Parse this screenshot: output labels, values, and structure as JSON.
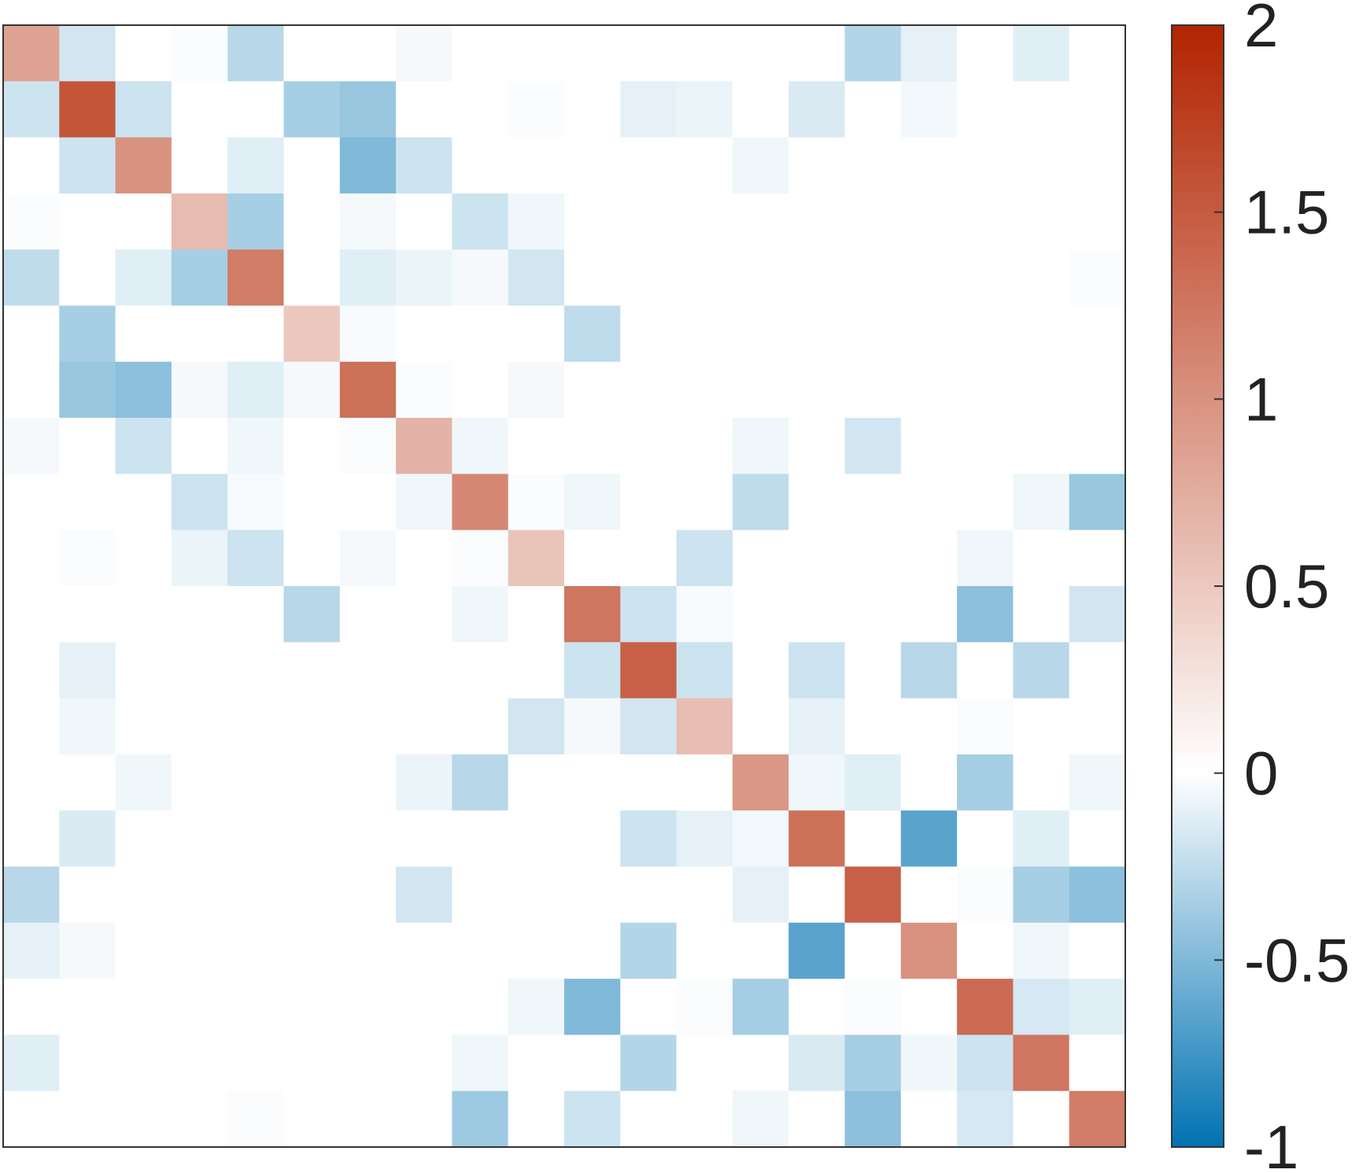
{
  "chart_data": {
    "type": "heatmap",
    "title": "",
    "xlabel": "",
    "ylabel": "",
    "rows": 20,
    "cols": 20,
    "values": [
      [
        0.85,
        -0.18,
        0.0,
        -0.02,
        -0.28,
        0.0,
        0.0,
        -0.04,
        0.0,
        0.0,
        0.0,
        0.0,
        0.0,
        0.0,
        0.0,
        -0.3,
        -0.1,
        0.0,
        -0.12,
        0.0
      ],
      [
        -0.2,
        1.55,
        -0.2,
        0.0,
        0.0,
        -0.35,
        -0.4,
        0.0,
        0.0,
        -0.02,
        0.0,
        -0.1,
        -0.08,
        0.0,
        -0.15,
        0.0,
        -0.05,
        0.0,
        0.0,
        0.0
      ],
      [
        0.0,
        -0.2,
        1.0,
        0.0,
        -0.12,
        0.0,
        -0.5,
        -0.2,
        0.0,
        0.0,
        0.0,
        0.0,
        0.0,
        -0.06,
        0.0,
        0.0,
        0.0,
        0.0,
        0.0,
        0.0
      ],
      [
        -0.02,
        0.0,
        0.0,
        0.62,
        -0.35,
        0.0,
        -0.04,
        0.0,
        -0.2,
        -0.06,
        0.0,
        0.0,
        0.0,
        0.0,
        0.0,
        0.0,
        0.0,
        0.0,
        0.0,
        0.0
      ],
      [
        -0.25,
        0.0,
        -0.12,
        -0.35,
        1.2,
        0.0,
        -0.12,
        -0.08,
        -0.04,
        -0.18,
        0.0,
        0.0,
        0.0,
        0.0,
        0.0,
        0.0,
        0.0,
        0.0,
        0.0,
        -0.02
      ],
      [
        0.0,
        -0.35,
        0.0,
        0.0,
        0.0,
        0.5,
        -0.03,
        0.0,
        0.0,
        0.0,
        -0.25,
        0.0,
        0.0,
        0.0,
        0.0,
        0.0,
        0.0,
        0.0,
        0.0,
        0.0
      ],
      [
        0.0,
        -0.4,
        -0.45,
        -0.04,
        -0.12,
        -0.04,
        1.3,
        -0.02,
        0.0,
        -0.04,
        0.0,
        0.0,
        0.0,
        0.0,
        0.0,
        0.0,
        0.0,
        0.0,
        0.0,
        0.0
      ],
      [
        -0.04,
        0.0,
        -0.2,
        0.0,
        -0.06,
        0.0,
        -0.02,
        0.7,
        -0.06,
        0.0,
        0.0,
        0.0,
        0.0,
        -0.06,
        0.0,
        -0.18,
        0.0,
        0.0,
        0.0,
        0.0
      ],
      [
        0.0,
        0.0,
        0.0,
        -0.2,
        -0.03,
        0.0,
        0.0,
        -0.06,
        1.1,
        -0.02,
        -0.06,
        0.0,
        0.0,
        -0.25,
        0.0,
        0.0,
        0.0,
        0.0,
        -0.06,
        -0.4
      ],
      [
        0.0,
        -0.02,
        0.0,
        -0.08,
        -0.2,
        0.0,
        -0.04,
        0.0,
        -0.02,
        0.55,
        0.0,
        0.0,
        -0.2,
        0.0,
        0.0,
        0.0,
        0.0,
        -0.06,
        0.0,
        0.0
      ],
      [
        0.0,
        0.0,
        0.0,
        0.0,
        0.0,
        -0.28,
        0.0,
        0.0,
        -0.06,
        0.0,
        1.25,
        -0.2,
        -0.03,
        0.0,
        0.0,
        0.0,
        0.0,
        -0.45,
        0.0,
        -0.18
      ],
      [
        0.0,
        -0.1,
        0.0,
        0.0,
        0.0,
        0.0,
        0.0,
        0.0,
        0.0,
        0.0,
        -0.2,
        1.45,
        -0.2,
        0.0,
        -0.2,
        0.0,
        -0.28,
        0.0,
        -0.28,
        0.0
      ],
      [
        0.0,
        -0.06,
        0.0,
        0.0,
        0.0,
        0.0,
        0.0,
        0.0,
        0.0,
        -0.18,
        -0.04,
        -0.18,
        0.6,
        0.0,
        -0.1,
        0.0,
        0.0,
        -0.02,
        0.0,
        0.0
      ],
      [
        0.0,
        0.0,
        -0.06,
        0.0,
        0.0,
        0.0,
        0.0,
        -0.08,
        -0.28,
        0.0,
        0.0,
        0.0,
        0.0,
        0.95,
        -0.06,
        -0.12,
        0.0,
        -0.35,
        0.0,
        -0.06
      ],
      [
        0.0,
        -0.14,
        0.0,
        0.0,
        0.0,
        0.0,
        0.0,
        0.0,
        0.0,
        0.0,
        0.0,
        -0.2,
        -0.1,
        -0.05,
        1.3,
        0.0,
        -0.65,
        0.0,
        -0.12,
        0.0
      ],
      [
        -0.28,
        0.0,
        0.0,
        0.0,
        0.0,
        0.0,
        0.0,
        -0.18,
        0.0,
        0.0,
        0.0,
        0.0,
        0.0,
        -0.1,
        0.0,
        1.45,
        0.0,
        -0.02,
        -0.35,
        -0.45
      ],
      [
        -0.1,
        -0.04,
        0.0,
        0.0,
        0.0,
        0.0,
        0.0,
        0.0,
        0.0,
        0.0,
        0.0,
        -0.3,
        0.0,
        0.0,
        -0.65,
        0.0,
        1.0,
        0.0,
        -0.06,
        0.0
      ],
      [
        0.0,
        0.0,
        0.0,
        0.0,
        0.0,
        0.0,
        0.0,
        0.0,
        0.0,
        -0.06,
        -0.5,
        0.0,
        -0.02,
        -0.35,
        0.0,
        -0.02,
        0.0,
        1.35,
        -0.16,
        -0.12
      ],
      [
        -0.12,
        0.0,
        0.0,
        0.0,
        0.0,
        0.0,
        0.0,
        0.0,
        -0.06,
        0.0,
        0.0,
        -0.3,
        0.0,
        0.0,
        -0.15,
        -0.35,
        -0.06,
        -0.2,
        1.25,
        0.0
      ],
      [
        0.0,
        0.0,
        0.0,
        0.0,
        -0.02,
        0.0,
        0.0,
        0.0,
        -0.38,
        0.0,
        -0.2,
        0.0,
        0.0,
        -0.06,
        0.0,
        -0.45,
        0.0,
        -0.16,
        0.0,
        1.2
      ]
    ],
    "colorbar": {
      "limits": [
        -1,
        2
      ],
      "ticks": [
        2,
        1.5,
        1,
        0.5,
        0,
        -0.5,
        -1
      ],
      "tick_labels": [
        "2",
        "1.5",
        "1",
        "0.5",
        "0",
        "-0.5",
        "-1"
      ]
    },
    "colors": {
      "negative_end": "#0072b2",
      "zero": "#ffffff",
      "positive_end": "#b22400",
      "frame": "#333333",
      "text": "#222222"
    }
  }
}
